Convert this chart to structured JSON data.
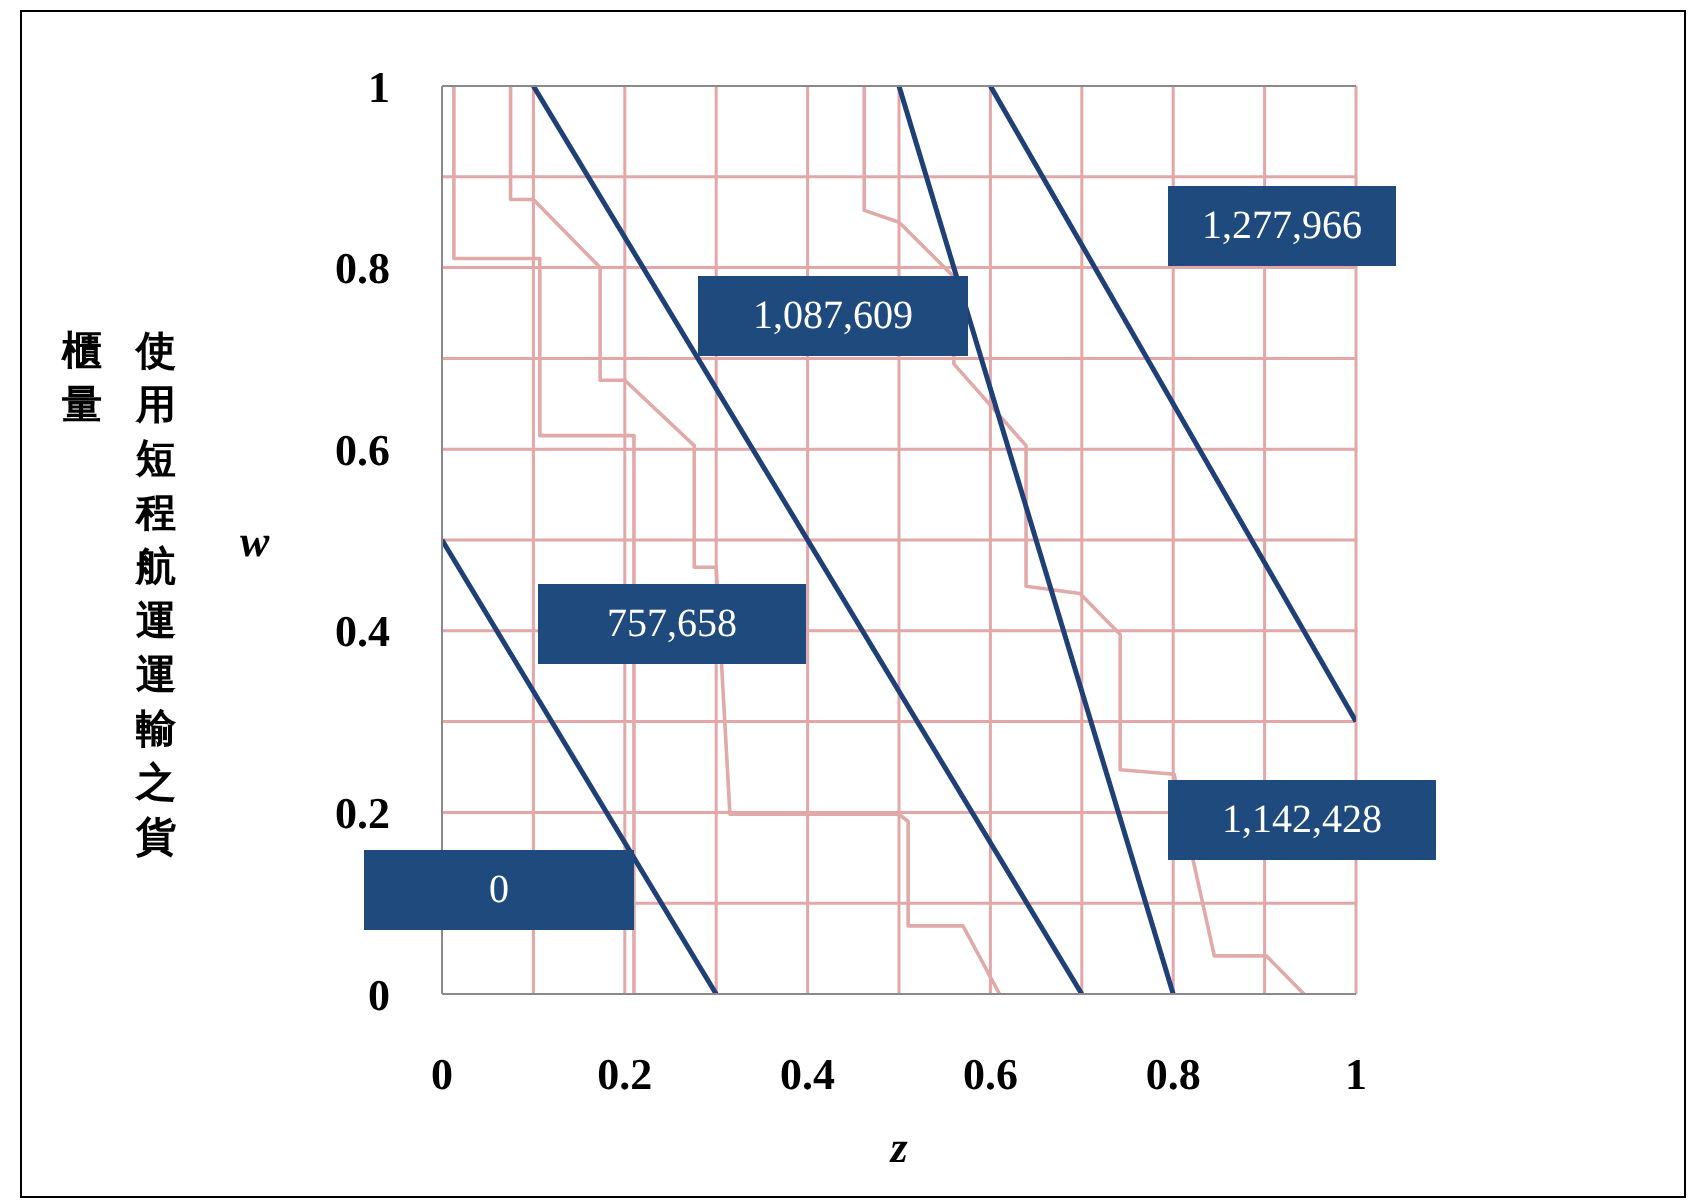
{
  "chart_data": {
    "type": "line",
    "xlabel": "z",
    "ylabel": "w",
    "marker": "none",
    "grid": true,
    "xlim": [
      0,
      1
    ],
    "ylim": [
      0,
      1
    ],
    "xticks": [
      0,
      {
        "value": 0.1,
        "label": null
      },
      0.2,
      {
        "value": 0.3,
        "label": null
      },
      0.4,
      {
        "value": 0.5,
        "label": null
      },
      0.6,
      {
        "value": 0.7,
        "label": null
      },
      0.8,
      {
        "value": 0.9,
        "label": null
      },
      1
    ],
    "yticks": [
      0,
      {
        "value": 0.1,
        "label": null
      },
      0.2,
      {
        "value": 0.3,
        "label": null
      },
      0.4,
      {
        "value": 0.5,
        "label": null
      },
      0.6,
      {
        "value": 0.7,
        "label": null
      },
      0.8,
      {
        "value": 0.9,
        "label": null
      },
      1
    ],
    "series": [
      {
        "color": "#e2a9a9",
        "x": [
          0.013,
          0.013,
          0.107,
          0.107,
          0.21,
          0.21
        ],
        "values": [
          1,
          0.81,
          0.81,
          0.615,
          0.615,
          0
        ]
      },
      {
        "color": "#e2a9a9",
        "x": [
          0.075,
          0.075,
          0.1,
          0.173,
          0.173,
          0.2,
          0.276,
          0.276,
          0.3,
          0.315,
          0.5,
          0.51,
          0.51,
          0.57,
          0.61
        ],
        "values": [
          1,
          0.875,
          0.875,
          0.8,
          0.676,
          0.676,
          0.604,
          0.47,
          0.47,
          0.198,
          0.198,
          0.19,
          0.075,
          0.075,
          0
        ]
      },
      {
        "color": "#e2a9a9",
        "x": [
          0.462,
          0.462,
          0.5,
          0.56,
          0.56,
          0.639,
          0.639,
          0.698,
          0.742,
          0.742,
          0.801,
          0.845,
          0.902,
          0.943
        ],
        "values": [
          1,
          0.863,
          0.85,
          0.79,
          0.694,
          0.604,
          0.449,
          0.441,
          0.396,
          0.247,
          0.242,
          0.042,
          0.042,
          0
        ]
      },
      {
        "color": "#1f3f77",
        "x": [
          0,
          0.3
        ],
        "values": [
          0.5,
          0
        ]
      },
      {
        "color": "#1f3f77",
        "x": [
          0.1,
          0.7
        ],
        "values": [
          1,
          0
        ]
      },
      {
        "color": "#1f3f77",
        "x": [
          0.5,
          0.8
        ],
        "values": [
          1,
          0
        ]
      },
      {
        "color": "#1f3f77",
        "x": [
          0.6,
          1
        ],
        "values": [
          1,
          0.3
        ]
      }
    ],
    "annotations": [
      "0",
      "757,658",
      "1,087,609",
      "1,277,966",
      "1,142,428",
      "使用短程航運運輸之貨櫃量"
    ]
  }
}
